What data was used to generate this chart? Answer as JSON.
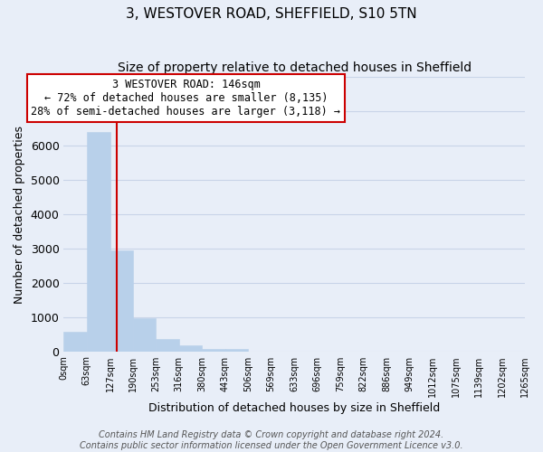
{
  "title": "3, WESTOVER ROAD, SHEFFIELD, S10 5TN",
  "subtitle": "Size of property relative to detached houses in Sheffield",
  "xlabel": "Distribution of detached houses by size in Sheffield",
  "ylabel": "Number of detached properties",
  "bar_edges": [
    0,
    63,
    127,
    190,
    253,
    316,
    380,
    443,
    506,
    569,
    633,
    696,
    759,
    822,
    886,
    949,
    1012,
    1075,
    1139,
    1202,
    1265
  ],
  "bar_heights": [
    570,
    6400,
    2950,
    975,
    370,
    175,
    80,
    70,
    0,
    0,
    0,
    0,
    0,
    0,
    0,
    0,
    0,
    0,
    0,
    0
  ],
  "bar_color": "#b8d0ea",
  "bar_edgecolor": "#b8d0ea",
  "vline_x": 146,
  "vline_color": "#cc0000",
  "ylim": [
    0,
    8000
  ],
  "tick_labels": [
    "0sqm",
    "63sqm",
    "127sqm",
    "190sqm",
    "253sqm",
    "316sqm",
    "380sqm",
    "443sqm",
    "506sqm",
    "569sqm",
    "633sqm",
    "696sqm",
    "759sqm",
    "822sqm",
    "886sqm",
    "949sqm",
    "1012sqm",
    "1075sqm",
    "1139sqm",
    "1202sqm",
    "1265sqm"
  ],
  "annotation_title": "3 WESTOVER ROAD: 146sqm",
  "annotation_line1": "← 72% of detached houses are smaller (8,135)",
  "annotation_line2": "28% of semi-detached houses are larger (3,118) →",
  "annotation_box_facecolor": "#ffffff",
  "annotation_box_edgecolor": "#cc0000",
  "grid_color": "#c8d4e8",
  "bg_color": "#e8eef8",
  "plot_bg_color": "#e8eef8",
  "footer_line1": "Contains HM Land Registry data © Crown copyright and database right 2024.",
  "footer_line2": "Contains public sector information licensed under the Open Government Licence v3.0.",
  "title_fontsize": 11,
  "subtitle_fontsize": 10,
  "ylabel_fontsize": 9,
  "xlabel_fontsize": 9,
  "tick_fontsize": 7,
  "annot_fontsize": 8.5,
  "footer_fontsize": 7
}
